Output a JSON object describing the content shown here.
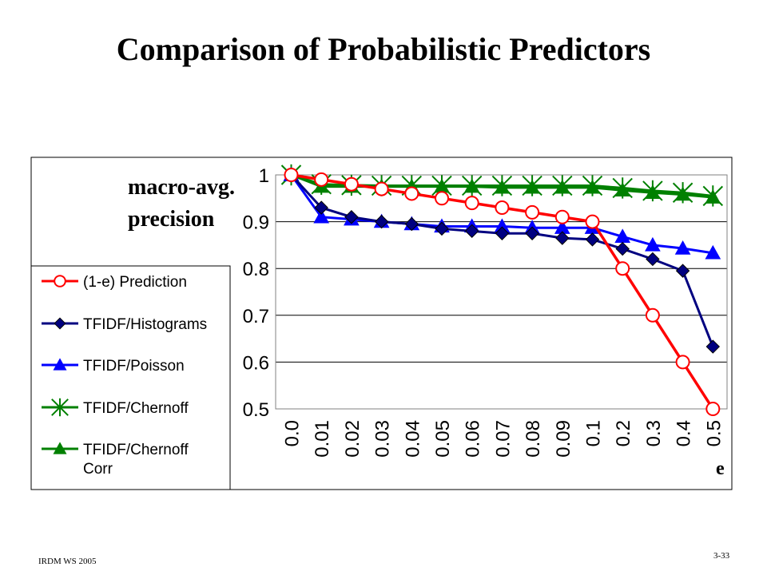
{
  "slide": {
    "title": "Comparison of Probabilistic Predictors",
    "footer_left": "IRDM  WS 2005",
    "footer_right": "3-33"
  },
  "chart_data": {
    "type": "line",
    "title": "",
    "ylabel_line1": "macro-avg.",
    "ylabel_line2": "precision",
    "xlabel": "e",
    "categories": [
      "0.0",
      "0.01",
      "0.02",
      "0.03",
      "0.04",
      "0.05",
      "0.06",
      "0.07",
      "0.08",
      "0.09",
      "0.1",
      "0.2",
      "0.3",
      "0.4",
      "0.5"
    ],
    "ylim": [
      0.5,
      1.0
    ],
    "yticks": [
      "0.5",
      "0.6",
      "0.7",
      "0.8",
      "0.9",
      "1"
    ],
    "grid": true,
    "legend_position": "left",
    "series": [
      {
        "name": "(1-e) Prediction",
        "color": "#ff0000",
        "marker": "circle-open",
        "values": [
          1.0,
          0.99,
          0.98,
          0.97,
          0.96,
          0.95,
          0.94,
          0.93,
          0.92,
          0.91,
          0.9,
          0.8,
          0.7,
          0.6,
          0.5
        ]
      },
      {
        "name": "TFIDF/Histograms",
        "color": "#000080",
        "marker": "diamond",
        "values": [
          1.0,
          0.93,
          0.91,
          0.9,
          0.895,
          0.885,
          0.88,
          0.875,
          0.875,
          0.865,
          0.862,
          0.842,
          0.82,
          0.795,
          0.633
        ]
      },
      {
        "name": "TFIDF/Poisson",
        "color": "#0000ff",
        "marker": "triangle",
        "values": [
          1.0,
          0.91,
          0.905,
          0.9,
          0.895,
          0.89,
          0.89,
          0.89,
          0.887,
          0.887,
          0.887,
          0.868,
          0.85,
          0.843,
          0.833
        ]
      },
      {
        "name": "TFIDF/Chernoff",
        "color": "#008000",
        "marker": "star",
        "values": [
          1.0,
          0.98,
          0.978,
          0.977,
          0.977,
          0.977,
          0.977,
          0.977,
          0.977,
          0.977,
          0.977,
          0.972,
          0.966,
          0.962,
          0.955
        ]
      },
      {
        "name": "TFIDF/Chernoff Corr",
        "color": "#008000",
        "marker": "triangle",
        "values": [
          1.0,
          0.975,
          0.975,
          0.975,
          0.975,
          0.975,
          0.975,
          0.973,
          0.973,
          0.973,
          0.973,
          0.967,
          0.962,
          0.958,
          0.952
        ]
      }
    ]
  }
}
